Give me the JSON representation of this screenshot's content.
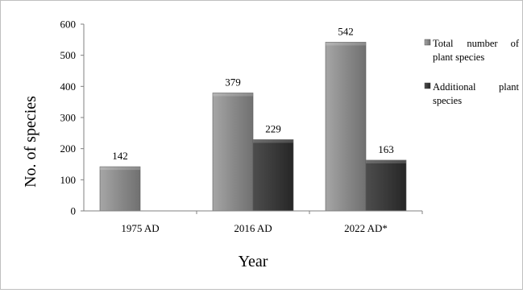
{
  "chart_data": {
    "type": "bar",
    "title": "",
    "xlabel": "Year",
    "ylabel": "No. of species",
    "ylim": [
      0,
      600
    ],
    "yticks": [
      0,
      100,
      200,
      300,
      400,
      500,
      600
    ],
    "categories": [
      "1975 AD",
      "2016 AD",
      "2022 AD*"
    ],
    "series": [
      {
        "name": "Total number of plant species",
        "legend_lines": [
          {
            "words": [
              "Total",
              "number",
              "of"
            ]
          },
          {
            "words": [
              "plant species"
            ]
          }
        ],
        "values": [
          142,
          379,
          542
        ],
        "labels": [
          "142",
          "379",
          "542"
        ],
        "color": "#8c8c8c"
      },
      {
        "name": "Additional plant species",
        "legend_lines": [
          {
            "words": [
              "Additional",
              "plant"
            ]
          },
          {
            "words": [
              "species"
            ]
          }
        ],
        "values": [
          null,
          229,
          163
        ],
        "labels": [
          "",
          "229",
          "163"
        ],
        "color": "#3c3c3c"
      }
    ],
    "grid": false,
    "legend_position": "right"
  }
}
